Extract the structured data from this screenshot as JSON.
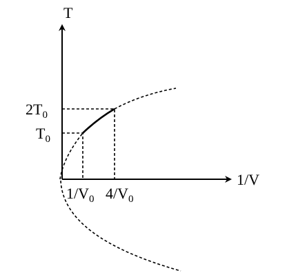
{
  "axes": {
    "y_label": "T",
    "x_label": "1/V"
  },
  "y_ticks": [
    {
      "text": "2T",
      "sub": "0"
    },
    {
      "text": "T",
      "sub": "0"
    }
  ],
  "x_ticks": [
    {
      "text": "1/V",
      "sub": "0"
    },
    {
      "text": "4/V",
      "sub": "0"
    }
  ]
}
